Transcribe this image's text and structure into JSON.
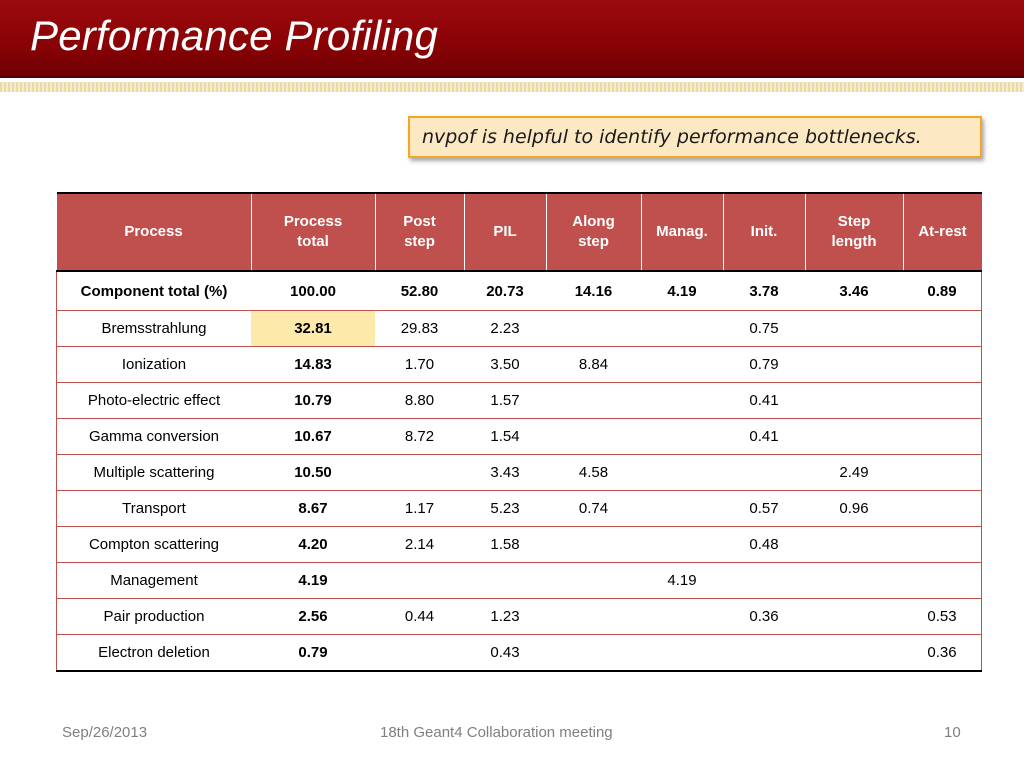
{
  "title": "Performance Profiling",
  "callout": "nvpof is helpful to identify performance bottlenecks.",
  "table": {
    "headers": [
      "Process",
      "Process total",
      "Post step",
      "PIL",
      "Along step",
      "Manag.",
      "Init.",
      "Step length",
      "At-rest"
    ],
    "highlight": {
      "row": 1,
      "col": 1,
      "color": "#fde9a9"
    },
    "rows": [
      [
        "Component total (%)",
        "100.00",
        "52.80",
        "20.73",
        "14.16",
        "4.19",
        "3.78",
        "3.46",
        "0.89"
      ],
      [
        "Bremsstrahlung",
        "32.81",
        "29.83",
        "2.23",
        "",
        "",
        "0.75",
        "",
        ""
      ],
      [
        "Ionization",
        "14.83",
        "1.70",
        "3.50",
        "8.84",
        "",
        "0.79",
        "",
        ""
      ],
      [
        "Photo-electric effect",
        "10.79",
        "8.80",
        "1.57",
        "",
        "",
        "0.41",
        "",
        ""
      ],
      [
        "Gamma conversion",
        "10.67",
        "8.72",
        "1.54",
        "",
        "",
        "0.41",
        "",
        ""
      ],
      [
        "Multiple scattering",
        "10.50",
        "",
        "3.43",
        "4.58",
        "",
        "",
        "2.49",
        ""
      ],
      [
        "Transport",
        "8.67",
        "1.17",
        "5.23",
        "0.74",
        "",
        "0.57",
        "0.96",
        ""
      ],
      [
        "Compton scattering",
        "4.20",
        "2.14",
        "1.58",
        "",
        "",
        "0.48",
        "",
        ""
      ],
      [
        "Management",
        "4.19",
        "",
        "",
        "",
        "4.19",
        "",
        "",
        ""
      ],
      [
        "Pair production",
        "2.56",
        "0.44",
        "1.23",
        "",
        "",
        "0.36",
        "",
        "0.53"
      ],
      [
        "Electron deletion",
        "0.79",
        "",
        "0.43",
        "",
        "",
        "",
        "",
        "0.36"
      ]
    ]
  },
  "footer": {
    "date": "Sep/26/2013",
    "event": "18th Geant4 Collaboration meeting",
    "page": "10"
  },
  "colors": {
    "title_bar": "#8a0205",
    "table_header": "#c0504d",
    "callout_fill": "#fde8c4",
    "callout_border": "#f5a623"
  }
}
